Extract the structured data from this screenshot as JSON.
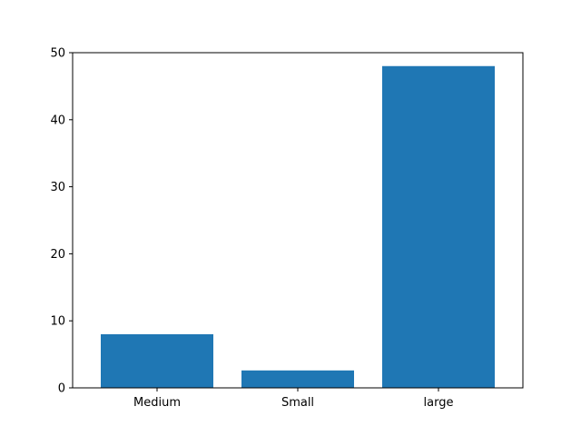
{
  "chart_data": {
    "type": "bar",
    "title": "",
    "xlabel": "",
    "ylabel": "",
    "categories": [
      "Medium",
      "Small",
      "large"
    ],
    "values": [
      8.0,
      2.6,
      48.0
    ],
    "ylim": [
      0,
      50
    ],
    "yticks": [
      0,
      10,
      20,
      30,
      40,
      50
    ],
    "grid": false,
    "bar_color": "#1f77b4"
  }
}
